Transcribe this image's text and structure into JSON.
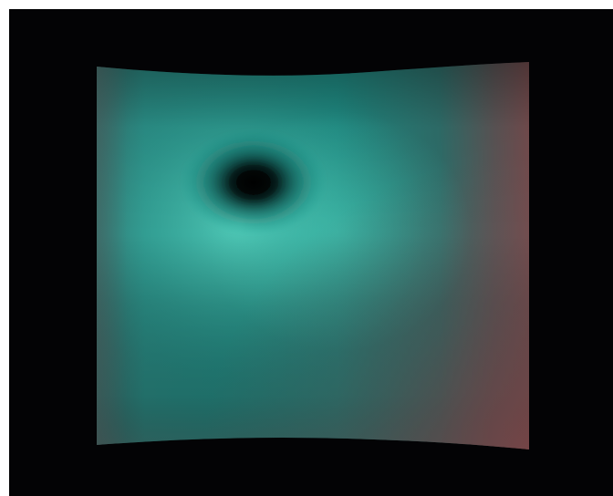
{
  "canvas": {
    "background_color": "#030305",
    "frame_color": "#ffffff"
  },
  "surface": {
    "description_icon": "warped-gradient-surface",
    "colors": {
      "teal_bright": "#44c4b2",
      "teal_mid": "#1f8f86",
      "teal_dark": "#145d5c",
      "rose_edge": "#7a4a4c",
      "mauve_corner": "#6b5657",
      "dimple_center": "#000000"
    }
  }
}
